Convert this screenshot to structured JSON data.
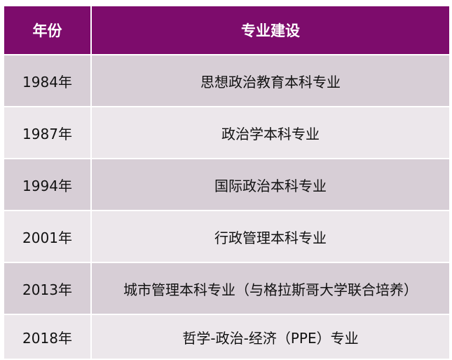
{
  "table": {
    "headers": [
      "年份",
      "专业建设"
    ],
    "rows": [
      {
        "year": "1984年",
        "major": "思想政治教育本科专业"
      },
      {
        "year": "1987年",
        "major": "政治学本科专业"
      },
      {
        "year": "1994年",
        "major": "国际政治本科专业"
      },
      {
        "year": "2001年",
        "major": "行政管理本科专业"
      },
      {
        "year": "2013年",
        "major": "城市管理本科专业（与格拉斯哥大学联合培养）"
      },
      {
        "year": "2018年",
        "major": "哲学-政治-经济（PPE）专业"
      }
    ]
  },
  "colors": {
    "header": "#7d0c6c",
    "row_dark": "#d7ced6",
    "row_light": "#ece7eb"
  }
}
